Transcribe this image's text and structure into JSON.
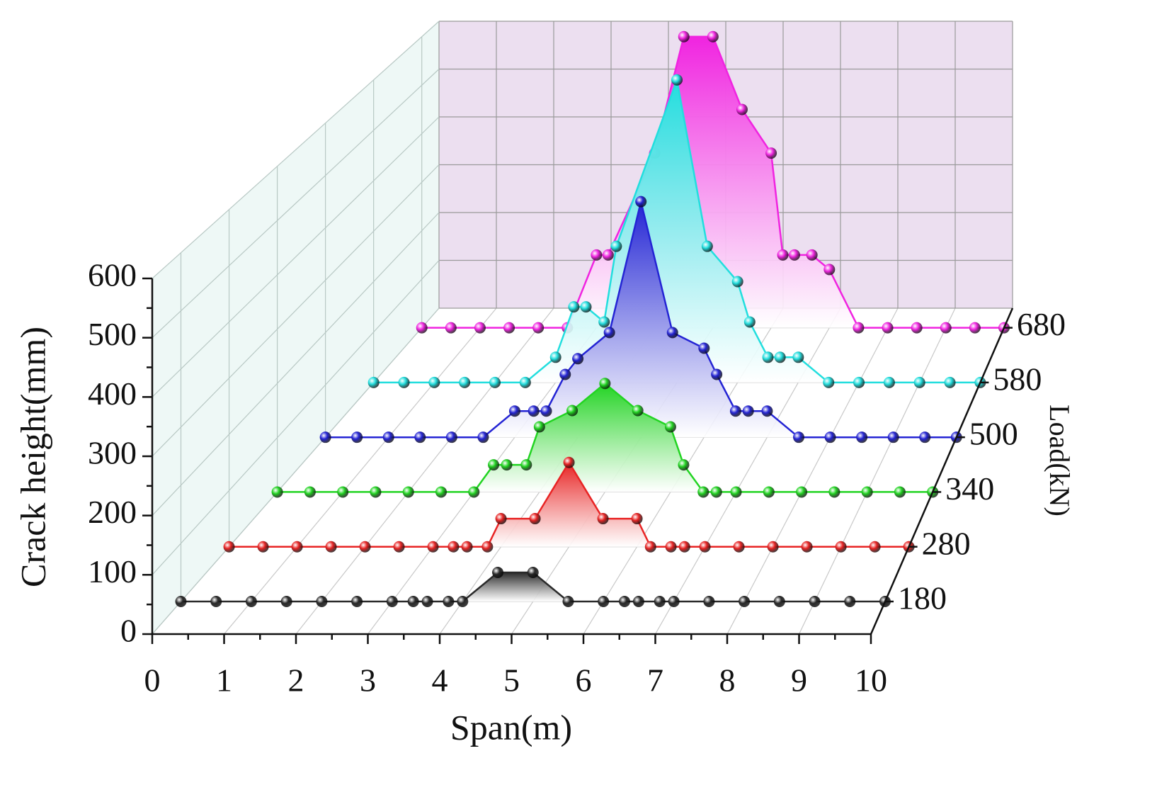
{
  "chart_data": {
    "type": "waterfall3d",
    "xlabel": "Span(m)",
    "ylabel": "Crack height(mm)",
    "zlabel": "Load(kN)",
    "xlim": [
      0,
      10
    ],
    "xticks": [
      0,
      1,
      2,
      3,
      4,
      5,
      6,
      7,
      8,
      9,
      10
    ],
    "ylim": [
      0,
      600
    ],
    "yticks": [
      0,
      100,
      200,
      300,
      400,
      500,
      600
    ],
    "grid": true,
    "series": [
      {
        "name": "180",
        "color": "#2a2a2a",
        "x": [
          0,
          0.5,
          1,
          1.5,
          2,
          2.5,
          3,
          3.3,
          3.5,
          3.8,
          4,
          4.5,
          5,
          5.5,
          6,
          6.3,
          6.5,
          6.8,
          7,
          7.5,
          8,
          8.5,
          9,
          9.5,
          10
        ],
        "values": [
          0,
          0,
          0,
          0,
          0,
          0,
          0,
          0,
          0,
          0,
          0,
          50,
          50,
          0,
          0,
          0,
          0,
          0,
          0,
          0,
          0,
          0,
          0,
          0,
          0
        ]
      },
      {
        "name": "280",
        "color": "#e82424",
        "x": [
          0,
          0.5,
          1,
          1.5,
          2,
          2.5,
          3,
          3.3,
          3.5,
          3.8,
          4,
          4.5,
          5,
          5.5,
          6,
          6.2,
          6.5,
          6.7,
          7,
          7.5,
          8,
          8.5,
          9,
          9.5,
          10
        ],
        "values": [
          0,
          0,
          0,
          0,
          0,
          0,
          0,
          0,
          0,
          0,
          50,
          50,
          150,
          50,
          50,
          0,
          0,
          0,
          0,
          0,
          0,
          0,
          0,
          0,
          0
        ]
      },
      {
        "name": "340",
        "color": "#22d422",
        "x": [
          0,
          0.5,
          1,
          1.5,
          2,
          2.5,
          3,
          3.3,
          3.5,
          3.8,
          4,
          4.5,
          5,
          5.5,
          6,
          6.2,
          6.5,
          6.7,
          7,
          7.5,
          8,
          8.5,
          9,
          9.5,
          10
        ],
        "values": [
          0,
          0,
          0,
          0,
          0,
          0,
          0,
          50,
          50,
          50,
          120,
          150,
          200,
          150,
          120,
          50,
          0,
          0,
          0,
          0,
          0,
          0,
          0,
          0,
          0
        ]
      },
      {
        "name": "500",
        "color": "#2424d4",
        "x": [
          0,
          0.5,
          1,
          1.5,
          2,
          2.5,
          3,
          3.3,
          3.5,
          3.8,
          4,
          4.5,
          5,
          5.5,
          6,
          6.2,
          6.5,
          6.7,
          7,
          7.5,
          8,
          8.5,
          9,
          9.5,
          10
        ],
        "values": [
          0,
          0,
          0,
          0,
          0,
          0,
          50,
          50,
          50,
          120,
          150,
          200,
          450,
          200,
          170,
          120,
          50,
          50,
          50,
          0,
          0,
          0,
          0,
          0,
          0
        ]
      },
      {
        "name": "580",
        "color": "#22dede",
        "x": [
          0,
          0.5,
          1,
          1.5,
          2,
          2.5,
          3,
          3.3,
          3.5,
          3.8,
          4,
          5,
          5.5,
          6,
          6.2,
          6.5,
          6.7,
          7,
          7.5,
          8,
          8.5,
          9,
          9.5,
          10
        ],
        "values": [
          0,
          0,
          0,
          0,
          0,
          0,
          50,
          150,
          150,
          120,
          270,
          600,
          270,
          200,
          120,
          50,
          50,
          50,
          0,
          0,
          0,
          0,
          0,
          0
        ]
      },
      {
        "name": "680",
        "color": "#f024e0",
        "x": [
          0,
          0.5,
          1,
          1.5,
          2,
          2.5,
          3,
          3.2,
          4,
          4.5,
          5,
          5.5,
          6,
          6.2,
          6.4,
          6.7,
          7,
          7.5,
          8,
          8.5,
          9,
          9.5,
          10
        ],
        "values": [
          0,
          0,
          0,
          0,
          0,
          0,
          150,
          150,
          360,
          600,
          600,
          450,
          360,
          150,
          150,
          150,
          120,
          0,
          0,
          0,
          0,
          0,
          0
        ]
      }
    ]
  }
}
